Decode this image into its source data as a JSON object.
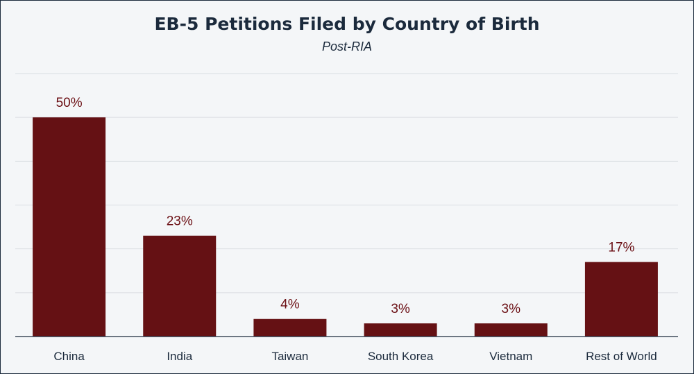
{
  "chart_data": {
    "type": "bar",
    "title": "EB-5 Petitions Filed by Country of Birth",
    "subtitle": "Post-RIA",
    "categories": [
      "China",
      "India",
      "Taiwan",
      "South Korea",
      "Vietnam",
      "Rest of World"
    ],
    "values": [
      50,
      23,
      4,
      3,
      3,
      17
    ],
    "value_labels": [
      "50%",
      "23%",
      "4%",
      "3%",
      "3%",
      "17%"
    ],
    "ylim": [
      0,
      60
    ],
    "grid": true,
    "bar_color": "#651114",
    "grid_color": "#d9dde2"
  }
}
